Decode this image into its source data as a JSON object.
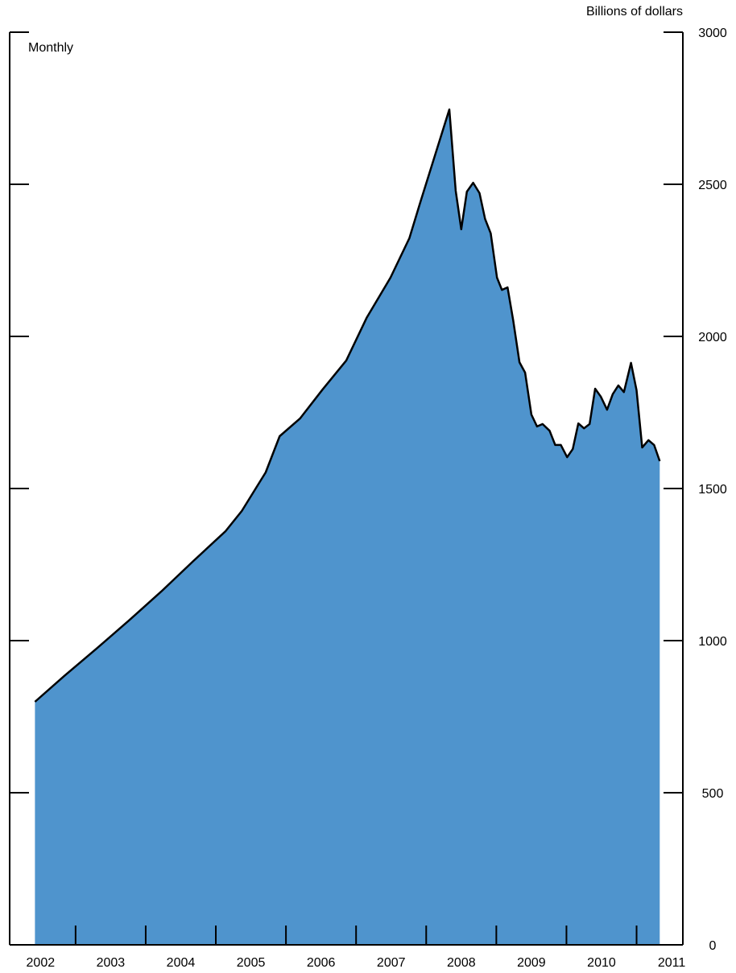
{
  "chart_data": {
    "type": "area",
    "y_axis_label": "Billions of dollars",
    "annotation": "Monthly",
    "x": [
      2002.42,
      2002.84,
      2003.3,
      2003.76,
      2004.22,
      2004.68,
      2005.14,
      2005.37,
      2005.71,
      2005.91,
      2006.2,
      2006.52,
      2006.86,
      2007.15,
      2007.49,
      2007.76,
      2007.92,
      2008.33,
      2008.42,
      2008.5,
      2008.58,
      2008.67,
      2008.76,
      2008.84,
      2008.92,
      2009.01,
      2009.08,
      2009.16,
      2009.24,
      2009.33,
      2009.41,
      2009.5,
      2009.58,
      2009.66,
      2009.76,
      2009.84,
      2009.92,
      2010.01,
      2010.09,
      2010.17,
      2010.25,
      2010.33,
      2010.41,
      2010.49,
      2010.58,
      2010.66,
      2010.74,
      2010.82,
      2010.92,
      2011.0,
      2011.08,
      2011.17,
      2011.25,
      2011.33
    ],
    "values": [
      799,
      884,
      974,
      1066,
      1161,
      1262,
      1360,
      1426,
      1553,
      1672,
      1730,
      1825,
      1921,
      2061,
      2193,
      2323,
      2444,
      2746,
      2479,
      2352,
      2476,
      2505,
      2471,
      2386,
      2339,
      2193,
      2153,
      2161,
      2053,
      1915,
      1881,
      1743,
      1704,
      1712,
      1690,
      1643,
      1643,
      1603,
      1630,
      1714,
      1698,
      1712,
      1828,
      1802,
      1759,
      1810,
      1839,
      1817,
      1913,
      1823,
      1635,
      1659,
      1643,
      1590
    ],
    "color": "#4f94cd",
    "line_color": "#000000",
    "xlim": [
      2002.06,
      2011.66
    ],
    "xticks": [
      {
        "value": 2002.5,
        "label": "2002"
      },
      {
        "value": 2003.5,
        "label": "2003"
      },
      {
        "value": 2004.5,
        "label": "2004"
      },
      {
        "value": 2005.5,
        "label": "2005"
      },
      {
        "value": 2006.5,
        "label": "2006"
      },
      {
        "value": 2007.5,
        "label": "2007"
      },
      {
        "value": 2008.5,
        "label": "2008"
      },
      {
        "value": 2009.5,
        "label": "2009"
      },
      {
        "value": 2010.5,
        "label": "2010"
      },
      {
        "value": 2011.5,
        "label": "2011"
      }
    ],
    "ylim": [
      0,
      3000
    ],
    "yticks": [
      0,
      500,
      1000,
      1500,
      2000,
      2500,
      3000
    ]
  }
}
